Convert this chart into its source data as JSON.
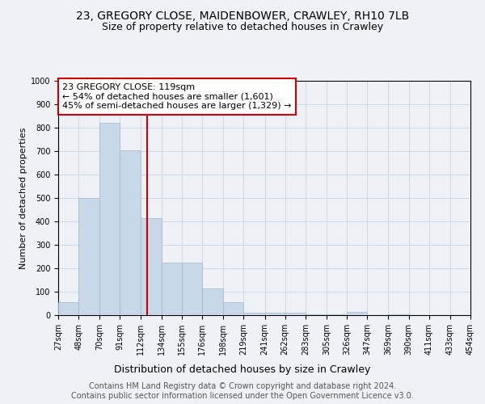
{
  "title": "23, GREGORY CLOSE, MAIDENBOWER, CRAWLEY, RH10 7LB",
  "subtitle": "Size of property relative to detached houses in Crawley",
  "xlabel": "Distribution of detached houses by size in Crawley",
  "ylabel": "Number of detached properties",
  "footer_line1": "Contains HM Land Registry data © Crown copyright and database right 2024.",
  "footer_line2": "Contains public sector information licensed under the Open Government Licence v3.0.",
  "annotation_line1": "23 GREGORY CLOSE: 119sqm",
  "annotation_line2": "← 54% of detached houses are smaller (1,601)",
  "annotation_line3": "45% of semi-detached houses are larger (1,329) →",
  "property_size": 119,
  "bin_edges": [
    27,
    48,
    70,
    91,
    112,
    134,
    155,
    176,
    198,
    219,
    241,
    262,
    283,
    305,
    326,
    347,
    369,
    390,
    411,
    433,
    454
  ],
  "bin_labels": [
    "27sqm",
    "48sqm",
    "70sqm",
    "91sqm",
    "112sqm",
    "134sqm",
    "155sqm",
    "176sqm",
    "198sqm",
    "219sqm",
    "241sqm",
    "262sqm",
    "283sqm",
    "305sqm",
    "326sqm",
    "347sqm",
    "369sqm",
    "390sqm",
    "411sqm",
    "433sqm",
    "454sqm"
  ],
  "bar_heights": [
    55,
    500,
    820,
    705,
    415,
    225,
    225,
    115,
    55,
    10,
    10,
    10,
    5,
    5,
    15,
    0,
    5,
    0,
    0,
    0
  ],
  "bar_color": "#c8d8e8",
  "bar_edge_color": "#a0b8cc",
  "vline_x": 119,
  "vline_color": "#cc0000",
  "ylim": [
    0,
    1000
  ],
  "yticks": [
    0,
    100,
    200,
    300,
    400,
    500,
    600,
    700,
    800,
    900,
    1000
  ],
  "background_color": "#eef2f7",
  "grid_color": "#c8d4e0",
  "annotation_box_color": "#ffffff",
  "annotation_box_edge": "#cc0000",
  "title_fontsize": 10,
  "subtitle_fontsize": 9,
  "xlabel_fontsize": 9,
  "ylabel_fontsize": 8,
  "tick_fontsize": 7,
  "annotation_fontsize": 8,
  "footer_fontsize": 7
}
